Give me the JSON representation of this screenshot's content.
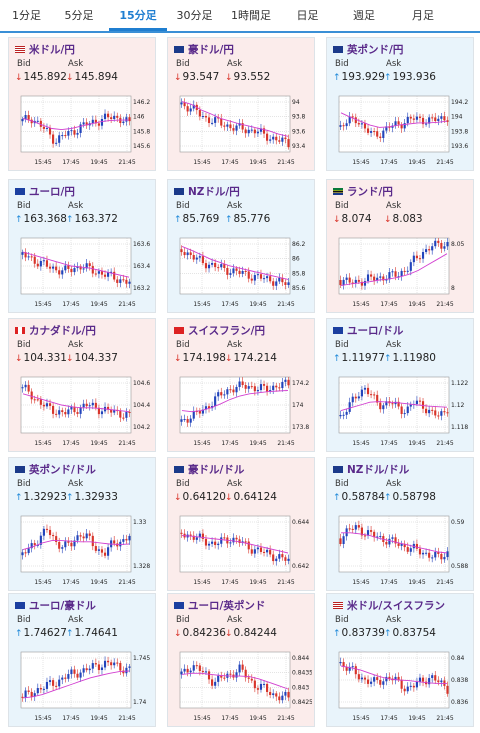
{
  "tabs": [
    {
      "label": "1分足",
      "active": false
    },
    {
      "label": "5分足",
      "active": false
    },
    {
      "label": "15分足",
      "active": true
    },
    {
      "label": "30分足",
      "active": false
    },
    {
      "label": "1時間足",
      "active": false
    },
    {
      "label": "日足",
      "active": false
    },
    {
      "label": "週足",
      "active": false
    },
    {
      "label": "月足",
      "active": false
    }
  ],
  "labels": {
    "bid": "Bid",
    "ask": "Ask"
  },
  "colors": {
    "accent": "#1f7ed0",
    "up": "#1e88d8",
    "down": "#d8342a",
    "up_bg": "#e9f4fb",
    "down_bg": "#fbeceb",
    "ma": "#d23fd0",
    "bull": "#2244bb",
    "bear": "#d8342a"
  },
  "pairs": [
    {
      "name": "米ドル/円",
      "flag": "us-jp",
      "dir": "down",
      "bid": "145.892",
      "ask": "145.894",
      "bid_dir": "down",
      "ask_dir": "down",
      "chart": {
        "y_ticks": [
          "146.2",
          "146",
          "145.8",
          "145.6"
        ],
        "x_ticks": [
          "15:45",
          "17:45",
          "19:45",
          "21:45"
        ],
        "trend": [
          0.55,
          0.62,
          0.5,
          0.35,
          0.2,
          0.3,
          0.35,
          0.45,
          0.5,
          0.55,
          0.6,
          0.62,
          0.6,
          0.5
        ],
        "ma": [
          0.6,
          0.55,
          0.48,
          0.42,
          0.4,
          0.42,
          0.46,
          0.5,
          0.54,
          0.56,
          0.57,
          0.57
        ]
      }
    },
    {
      "name": "豪ドル/円",
      "flag": "au-jp",
      "dir": "down",
      "bid": "93.547",
      "ask": "93.552",
      "bid_dir": "down",
      "ask_dir": "down",
      "chart": {
        "y_ticks": [
          "94",
          "93.8",
          "93.6",
          "93.4"
        ],
        "x_ticks": [
          "15:45",
          "17:45",
          "19:45",
          "21:45"
        ],
        "trend": [
          0.85,
          0.8,
          0.7,
          0.6,
          0.55,
          0.5,
          0.45,
          0.42,
          0.4,
          0.38,
          0.3,
          0.25,
          0.2,
          0.15
        ],
        "ma": [
          0.9,
          0.85,
          0.75,
          0.68,
          0.6,
          0.55,
          0.5,
          0.46,
          0.42,
          0.38,
          0.32,
          0.28
        ]
      }
    },
    {
      "name": "英ポンド/円",
      "flag": "uk-jp",
      "dir": "up",
      "bid": "193.929",
      "ask": "193.936",
      "bid_dir": "up",
      "ask_dir": "up",
      "chart": {
        "y_ticks": [
          "194.2",
          "194",
          "193.8",
          "193.6"
        ],
        "x_ticks": [
          "15:45",
          "17:45",
          "19:45",
          "21:45"
        ],
        "trend": [
          0.45,
          0.55,
          0.6,
          0.4,
          0.3,
          0.35,
          0.45,
          0.5,
          0.55,
          0.6,
          0.58,
          0.55,
          0.6,
          0.62
        ],
        "ma": [
          0.7,
          0.62,
          0.55,
          0.48,
          0.44,
          0.45,
          0.48,
          0.5,
          0.52,
          0.52,
          0.53,
          0.55
        ]
      }
    },
    {
      "name": "ユーロ/円",
      "flag": "eu-jp",
      "dir": "up",
      "bid": "163.368",
      "ask": "163.372",
      "bid_dir": "up",
      "ask_dir": "up",
      "chart": {
        "y_ticks": [
          "163.6",
          "163.4",
          "163.2"
        ],
        "x_ticks": [
          "15:45",
          "17:45",
          "19:45",
          "21:45"
        ],
        "trend": [
          0.7,
          0.65,
          0.55,
          0.5,
          0.45,
          0.4,
          0.45,
          0.5,
          0.45,
          0.4,
          0.35,
          0.3,
          0.25,
          0.2
        ],
        "ma": [
          0.75,
          0.7,
          0.65,
          0.6,
          0.55,
          0.5,
          0.48,
          0.46,
          0.42,
          0.38,
          0.34,
          0.3
        ]
      }
    },
    {
      "name": "NZドル/円",
      "flag": "nz-jp",
      "dir": "up",
      "bid": "85.769",
      "ask": "85.776",
      "bid_dir": "up",
      "ask_dir": "up",
      "chart": {
        "y_ticks": [
          "86.2",
          "86",
          "85.8",
          "85.6"
        ],
        "x_ticks": [
          "15:45",
          "17:45",
          "19:45",
          "21:45"
        ],
        "trend": [
          0.8,
          0.7,
          0.6,
          0.55,
          0.5,
          0.45,
          0.42,
          0.38,
          0.35,
          0.3,
          0.28,
          0.25,
          0.2,
          0.18
        ],
        "ma": [
          0.85,
          0.78,
          0.7,
          0.62,
          0.56,
          0.5,
          0.46,
          0.42,
          0.38,
          0.34,
          0.3,
          0.26
        ]
      }
    },
    {
      "name": "ランド/円",
      "flag": "za-jp",
      "dir": "down",
      "bid": "8.074",
      "ask": "8.083",
      "bid_dir": "down",
      "ask_dir": "down",
      "chart": {
        "y_ticks": [
          "8.05",
          "8"
        ],
        "x_ticks": [
          "15:45",
          "17:45",
          "19:45",
          "21:45"
        ],
        "trend": [
          0.25,
          0.2,
          0.22,
          0.25,
          0.28,
          0.3,
          0.32,
          0.35,
          0.45,
          0.6,
          0.75,
          0.85,
          0.88,
          0.9
        ],
        "ma": [
          0.15,
          0.18,
          0.2,
          0.22,
          0.25,
          0.27,
          0.3,
          0.35,
          0.42,
          0.52,
          0.62,
          0.72
        ]
      }
    },
    {
      "name": "カナダドル/円",
      "flag": "ca-jp",
      "dir": "down",
      "bid": "104.331",
      "ask": "104.337",
      "bid_dir": "down",
      "ask_dir": "down",
      "chart": {
        "y_ticks": [
          "104.6",
          "104.4",
          "104.2"
        ],
        "x_ticks": [
          "15:45",
          "17:45",
          "19:45",
          "21:45"
        ],
        "trend": [
          0.8,
          0.7,
          0.55,
          0.45,
          0.4,
          0.35,
          0.4,
          0.45,
          0.5,
          0.45,
          0.4,
          0.38,
          0.35,
          0.3
        ],
        "ma": [
          0.7,
          0.65,
          0.6,
          0.55,
          0.5,
          0.47,
          0.45,
          0.45,
          0.44,
          0.42,
          0.4,
          0.38
        ]
      }
    },
    {
      "name": "スイスフラン/円",
      "flag": "ch-jp",
      "dir": "down",
      "bid": "174.198",
      "ask": "174.214",
      "bid_dir": "down",
      "ask_dir": "down",
      "chart": {
        "y_ticks": [
          "174.2",
          "174",
          "173.8"
        ],
        "x_ticks": [
          "15:45",
          "17:45",
          "19:45",
          "21:45"
        ],
        "trend": [
          0.2,
          0.3,
          0.35,
          0.45,
          0.6,
          0.7,
          0.8,
          0.82,
          0.85,
          0.8,
          0.78,
          0.82,
          0.85,
          0.88
        ],
        "ma": [
          0.4,
          0.38,
          0.4,
          0.45,
          0.52,
          0.6,
          0.66,
          0.7,
          0.72,
          0.74,
          0.75,
          0.76
        ]
      }
    },
    {
      "name": "ユーロ/ドル",
      "flag": "eu-us",
      "dir": "up",
      "bid": "1.11977",
      "ask": "1.11980",
      "bid_dir": "up",
      "ask_dir": "up",
      "chart": {
        "y_ticks": [
          "1.122",
          "1.12",
          "1.118"
        ],
        "x_ticks": [
          "15:45",
          "17:45",
          "19:45",
          "21:45"
        ],
        "trend": [
          0.3,
          0.45,
          0.7,
          0.8,
          0.6,
          0.5,
          0.55,
          0.45,
          0.4,
          0.55,
          0.5,
          0.35,
          0.3,
          0.45
        ],
        "ma": [
          0.4,
          0.45,
          0.5,
          0.55,
          0.56,
          0.55,
          0.54,
          0.52,
          0.5,
          0.48,
          0.47,
          0.46
        ]
      }
    },
    {
      "name": "英ポンド/ドル",
      "flag": "uk-us",
      "dir": "up",
      "bid": "1.32923",
      "ask": "1.32933",
      "bid_dir": "up",
      "ask_dir": "up",
      "chart": {
        "y_ticks": [
          "1.33",
          "1.328"
        ],
        "x_ticks": [
          "15:45",
          "17:45",
          "19:45",
          "21:45"
        ],
        "trend": [
          0.3,
          0.45,
          0.6,
          0.75,
          0.55,
          0.45,
          0.5,
          0.7,
          0.6,
          0.4,
          0.35,
          0.5,
          0.55,
          0.65
        ],
        "ma": [
          0.4,
          0.45,
          0.52,
          0.56,
          0.56,
          0.55,
          0.54,
          0.54,
          0.52,
          0.5,
          0.49,
          0.5
        ]
      }
    },
    {
      "name": "豪ドル/ドル",
      "flag": "au-us",
      "dir": "down",
      "bid": "0.64120",
      "ask": "0.64124",
      "bid_dir": "down",
      "ask_dir": "down",
      "chart": {
        "y_ticks": [
          "0.644",
          "0.642"
        ],
        "x_ticks": [
          "15:45",
          "17:45",
          "19:45",
          "21:45"
        ],
        "trend": [
          0.7,
          0.65,
          0.6,
          0.55,
          0.5,
          0.55,
          0.6,
          0.55,
          0.45,
          0.4,
          0.35,
          0.3,
          0.25,
          0.2
        ],
        "ma": [
          0.65,
          0.64,
          0.62,
          0.6,
          0.58,
          0.56,
          0.54,
          0.5,
          0.46,
          0.42,
          0.38,
          0.34
        ]
      }
    },
    {
      "name": "NZドル/ドル",
      "flag": "nz-us",
      "dir": "up",
      "bid": "0.58784",
      "ask": "0.58798",
      "bid_dir": "up",
      "ask_dir": "up",
      "chart": {
        "y_ticks": [
          "0.59",
          "0.588"
        ],
        "x_ticks": [
          "15:45",
          "17:45",
          "19:45",
          "21:45"
        ],
        "trend": [
          0.6,
          0.75,
          0.8,
          0.7,
          0.65,
          0.6,
          0.55,
          0.5,
          0.45,
          0.4,
          0.35,
          0.3,
          0.25,
          0.35
        ],
        "ma": [
          0.7,
          0.7,
          0.68,
          0.65,
          0.6,
          0.56,
          0.52,
          0.48,
          0.44,
          0.4,
          0.36,
          0.34
        ]
      }
    },
    {
      "name": "ユーロ/豪ドル",
      "flag": "eu-au",
      "dir": "up",
      "bid": "1.74627",
      "ask": "1.74641",
      "bid_dir": "up",
      "ask_dir": "up",
      "chart": {
        "y_ticks": [
          "1.745",
          "1.74"
        ],
        "x_ticks": [
          "15:45",
          "17:45",
          "19:45",
          "21:45"
        ],
        "trend": [
          0.2,
          0.25,
          0.35,
          0.4,
          0.45,
          0.55,
          0.6,
          0.65,
          0.7,
          0.75,
          0.8,
          0.78,
          0.72,
          0.68
        ],
        "ma": [
          0.18,
          0.2,
          0.24,
          0.3,
          0.36,
          0.42,
          0.48,
          0.54,
          0.58,
          0.62,
          0.65,
          0.66
        ]
      }
    },
    {
      "name": "ユーロ/英ポンド",
      "flag": "eu-uk",
      "dir": "down",
      "bid": "0.84236",
      "ask": "0.84244",
      "bid_dir": "down",
      "ask_dir": "down",
      "chart": {
        "y_ticks": [
          "0.844",
          "0.8435",
          "0.843",
          "0.8425"
        ],
        "x_ticks": [
          "15:45",
          "17:45",
          "19:45",
          "21:45"
        ],
        "trend": [
          0.6,
          0.75,
          0.7,
          0.6,
          0.45,
          0.55,
          0.6,
          0.7,
          0.55,
          0.4,
          0.35,
          0.25,
          0.2,
          0.18
        ],
        "ma": [
          0.6,
          0.62,
          0.62,
          0.6,
          0.58,
          0.57,
          0.57,
          0.56,
          0.52,
          0.46,
          0.4,
          0.34
        ]
      }
    },
    {
      "name": "米ドル/スイスフラン",
      "flag": "us-ch",
      "dir": "up",
      "bid": "0.83739",
      "ask": "0.83754",
      "bid_dir": "up",
      "ask_dir": "up",
      "chart": {
        "y_ticks": [
          "0.84",
          "0.838",
          "0.836"
        ],
        "x_ticks": [
          "15:45",
          "17:45",
          "19:45",
          "21:45"
        ],
        "trend": [
          0.8,
          0.7,
          0.6,
          0.5,
          0.45,
          0.5,
          0.55,
          0.45,
          0.35,
          0.4,
          0.5,
          0.55,
          0.45,
          0.35
        ],
        "ma": [
          0.75,
          0.72,
          0.68,
          0.62,
          0.56,
          0.52,
          0.5,
          0.49,
          0.47,
          0.45,
          0.44,
          0.44
        ]
      }
    }
  ]
}
